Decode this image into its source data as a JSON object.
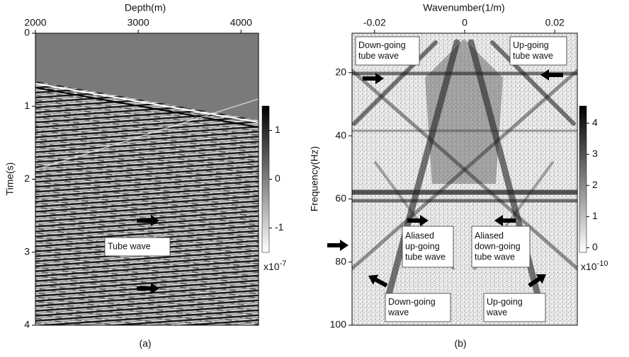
{
  "chart_data": [
    {
      "type": "image",
      "caption": "(a)",
      "x_label": "Depth(m)",
      "y_label": "Time(s)",
      "xlim": [
        2000,
        4170
      ],
      "xticks": [
        2000,
        3000,
        4000
      ],
      "ylim": [
        0,
        4
      ],
      "yticks": [
        0,
        1,
        2,
        3,
        4
      ],
      "y_inverted": true,
      "colorbar": {
        "ylim": [
          -1.5,
          1.5
        ],
        "ticks": [
          1,
          0,
          -1
        ],
        "colors": [
          "#ffffff",
          "#000000"
        ],
        "multiplier": {
          "base": "x10",
          "exponent": "-7"
        }
      },
      "annotations": [
        {
          "lines": [
            "Tube wave"
          ]
        }
      ]
    },
    {
      "type": "image",
      "caption": "(b)",
      "x_label": "Wavenumber(1/m)",
      "y_label": "Frequency(Hz)",
      "xlim": [
        -0.025,
        0.025
      ],
      "xticks": [
        -0.02,
        0,
        0.02
      ],
      "ylim": [
        7.5,
        100
      ],
      "yticks": [
        20,
        40,
        60,
        80,
        100
      ],
      "y_inverted": true,
      "colorbar": {
        "ylim": [
          -0.15,
          4.55
        ],
        "ticks": [
          0,
          1,
          2,
          3,
          4
        ],
        "colors": [
          "#ffffff",
          "#000000"
        ],
        "multiplier": {
          "base": "x10",
          "exponent": "-10"
        }
      },
      "annotations": [
        {
          "lines": [
            "Down-going",
            "tube wave"
          ]
        },
        {
          "lines": [
            "Up-going",
            "tube wave"
          ]
        },
        {
          "lines": [
            "Aliased",
            "up-going",
            "tube wave"
          ]
        },
        {
          "lines": [
            "Aliased",
            "down-going",
            "tube wave"
          ]
        },
        {
          "lines": [
            "Down-going",
            "wave"
          ]
        },
        {
          "lines": [
            "Up-going",
            "wave"
          ]
        }
      ]
    }
  ]
}
